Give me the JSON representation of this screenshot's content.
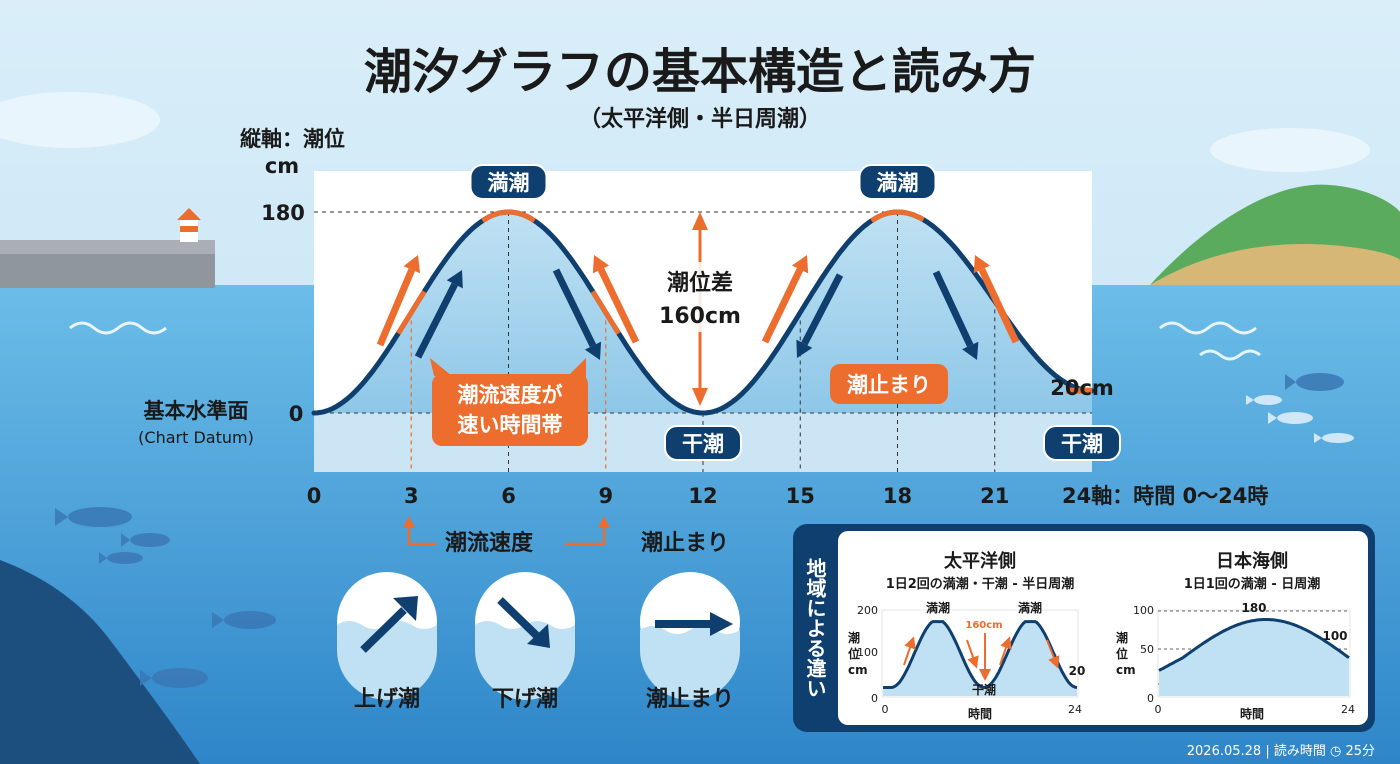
{
  "title": "潮汐グラフの基本構造と読み方",
  "subtitle": "（太平洋側・半日周潮）",
  "y_axis_label": "縦軸：潮位",
  "y_axis_unit": "cm",
  "x_axis_label": "24軸：時間 0〜24時",
  "datum_label": "基本水準面",
  "datum_label_en": "(Chart Datum)",
  "high_tide_label": "満潮",
  "low_tide_label": "干潮",
  "tide_range_label": "潮位差",
  "tide_range_value": "160cm",
  "fast_current_label_1": "潮流速度が",
  "fast_current_label_2": "速い時間帯",
  "slack_label": "潮止まり",
  "end_level_label": "20cm",
  "legend_current_speed": "潮流速度",
  "legend_slack": "潮止まり",
  "icons": {
    "rising_label": "上げ潮",
    "falling_label": "下げ潮",
    "slack_label": "潮止まり"
  },
  "inset": {
    "side_title": "地域による違い",
    "left": {
      "title": "太平洋側",
      "subtitle": "1日2回の満潮・干潮 - 半日周潮",
      "y_axis": "潮位cm",
      "y_ticks": [
        "200",
        "100",
        "0"
      ],
      "x_ticks": [
        "0",
        "24"
      ],
      "x_label": "時間",
      "high_label": "満潮",
      "low_label": "干潮",
      "range_label": "160cm",
      "end_label": "20"
    },
    "right": {
      "title": "日本海側",
      "subtitle": "1日1回の満潮 - 日周潮",
      "y_axis": "潮位cm",
      "y_ticks": [
        "100",
        "50",
        "0"
      ],
      "x_ticks": [
        "0",
        "24"
      ],
      "x_label": "時間",
      "peak_label": "180",
      "end_label": "100"
    }
  },
  "footer": "2026.05.28 | 読み時間 ◷ 25分",
  "colors": {
    "navy": "#0f3f6e",
    "orange": "#ec6d2d",
    "sky": "#cde7f5",
    "sea": "#5fb1e0"
  },
  "chart_data": {
    "type": "line",
    "x": [
      0,
      3,
      6,
      9,
      12,
      15,
      18,
      21,
      24
    ],
    "xticks": [
      "0",
      "3",
      "6",
      "9",
      "12",
      "15",
      "18",
      "21",
      "24"
    ],
    "yticks": [
      "180",
      "0"
    ],
    "high_tides": [
      {
        "x": 6,
        "y": 180
      },
      {
        "x": 18,
        "y": 180
      }
    ],
    "low_tides": [
      {
        "x": 12,
        "y": 0
      },
      {
        "x": 24,
        "y": 20
      }
    ],
    "tide_range": 160,
    "xlim": [
      0,
      24
    ],
    "ylim": [
      -60,
      220
    ]
  }
}
